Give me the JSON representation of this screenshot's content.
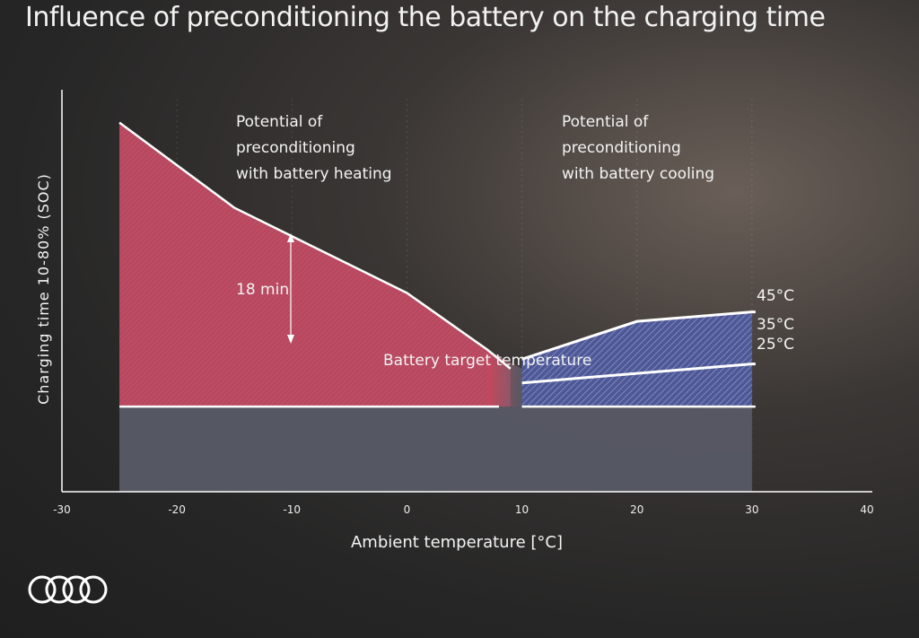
{
  "title": "Influence of preconditioning the battery on the charging time",
  "logo": "four-rings-logo",
  "colors": {
    "heating": "#b8485f",
    "cooling": "#4e5896",
    "base": "#575a66",
    "line": "#ffffff"
  },
  "chart_data": {
    "type": "area",
    "title": "Influence of preconditioning the battery on the charging time",
    "xlabel": "Ambient temperature [°C]",
    "ylabel": "Charging time 10-80% (SOC)",
    "xlim": [
      -30,
      40
    ],
    "xticks": [
      "-30",
      "-20",
      "-10",
      "0",
      "10",
      "20",
      "30",
      "40"
    ],
    "xtick_values": [
      -30,
      -20,
      -10,
      0,
      10,
      20,
      30,
      40
    ],
    "grid": true,
    "series": [
      {
        "key": "heating",
        "x": [
          -25,
          -15,
          -10,
          0,
          7,
          9
        ],
        "y": [
          39,
          30,
          27,
          21,
          15,
          13
        ]
      },
      {
        "key": "cooling",
        "x": [
          10,
          20,
          30
        ],
        "y": [
          14,
          18,
          19
        ]
      },
      {
        "key": "35C",
        "x": [
          10,
          20,
          30
        ],
        "y": [
          11.5,
          12.5,
          13.5
        ]
      },
      {
        "key": "target",
        "x": [
          -25,
          30
        ],
        "y": [
          9,
          9
        ]
      }
    ],
    "annotations": {
      "heating_potential": [
        "Potential of",
        "preconditioning",
        "with battery heating"
      ],
      "cooling_potential": [
        "Potential of",
        "preconditioning",
        "with battery cooling"
      ],
      "delta_label": "18 min",
      "target_label": "Battery target temperature",
      "line_labels": [
        "45°C",
        "35°C",
        "25°C"
      ]
    }
  }
}
